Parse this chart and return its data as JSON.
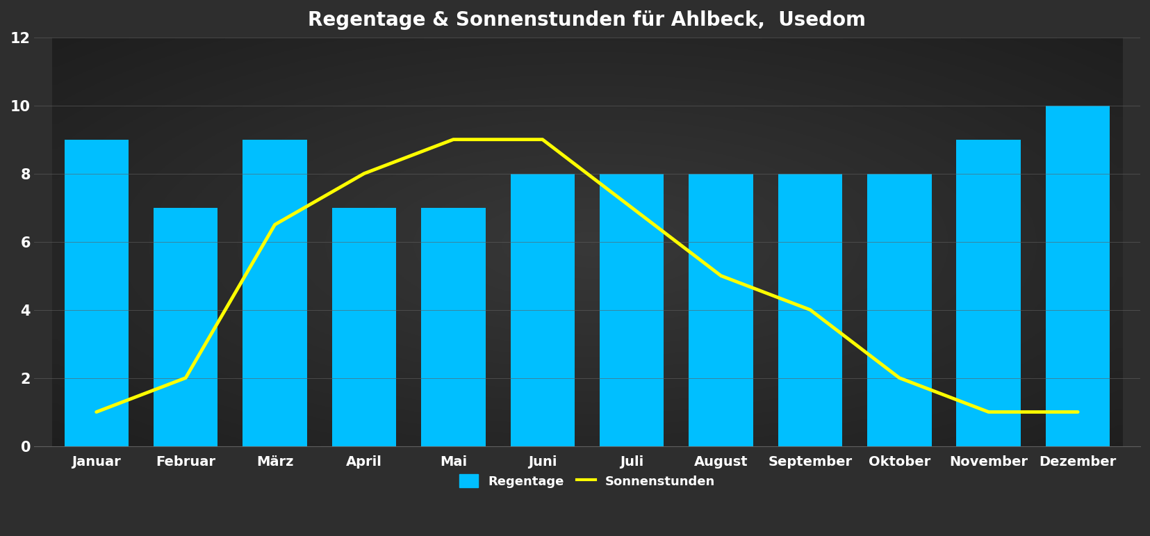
{
  "title": "Regentage & Sonnenstunden für Ahlbeck,  Usedom",
  "months": [
    "Januar",
    "Februar",
    "März",
    "April",
    "Mai",
    "Juni",
    "Juli",
    "August",
    "September",
    "Oktober",
    "November",
    "Dezember"
  ],
  "regentage": [
    9,
    7,
    9,
    7,
    7,
    8,
    8,
    8,
    8,
    8,
    9,
    10
  ],
  "sonnenstunden": [
    1,
    2,
    6.5,
    8,
    9,
    9,
    7,
    5,
    4,
    2,
    1,
    1
  ],
  "bar_color": "#00BFFF",
  "line_color": "#FFFF00",
  "background_color": "#2e2e2e",
  "text_color": "#ffffff",
  "grid_color": "#606060",
  "title_fontsize": 20,
  "tick_fontsize": 14,
  "legend_fontsize": 13,
  "ylim": [
    0,
    12
  ],
  "yticks": [
    0,
    2,
    4,
    6,
    8,
    10,
    12
  ]
}
